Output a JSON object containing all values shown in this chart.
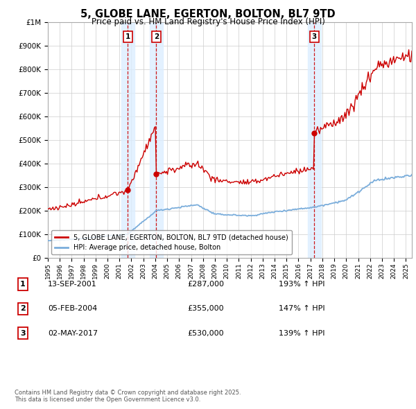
{
  "title": "5, GLOBE LANE, EGERTON, BOLTON, BL7 9TD",
  "subtitle": "Price paid vs. HM Land Registry's House Price Index (HPI)",
  "ylim": [
    0,
    1000000
  ],
  "yticks": [
    0,
    100000,
    200000,
    300000,
    400000,
    500000,
    600000,
    700000,
    800000,
    900000,
    1000000
  ],
  "ytick_labels": [
    "£0",
    "£100K",
    "£200K",
    "£300K",
    "£400K",
    "£500K",
    "£600K",
    "£700K",
    "£800K",
    "£900K",
    "£1M"
  ],
  "sale_times": [
    2001.708,
    2004.083,
    2017.333
  ],
  "sale_prices": [
    287000,
    355000,
    530000
  ],
  "sale_labels": [
    "1",
    "2",
    "3"
  ],
  "sale_info": [
    {
      "label": "1",
      "date": "13-SEP-2001",
      "price": "£287,000",
      "hpi": "193% ↑ HPI"
    },
    {
      "label": "2",
      "date": "05-FEB-2004",
      "price": "£355,000",
      "hpi": "147% ↑ HPI"
    },
    {
      "label": "3",
      "date": "02-MAY-2017",
      "price": "£530,000",
      "hpi": "139% ↑ HPI"
    }
  ],
  "legend_label_red": "5, GLOBE LANE, EGERTON, BOLTON, BL7 9TD (detached house)",
  "legend_label_blue": "HPI: Average price, detached house, Bolton",
  "footnote": "Contains HM Land Registry data © Crown copyright and database right 2025.\nThis data is licensed under the Open Government Licence v3.0.",
  "red_color": "#cc0000",
  "blue_color": "#7aaddb",
  "vline_color": "#cc0000",
  "shaded_color": "#ddeeff",
  "bg_color": "#ffffff",
  "grid_color": "#cccccc"
}
